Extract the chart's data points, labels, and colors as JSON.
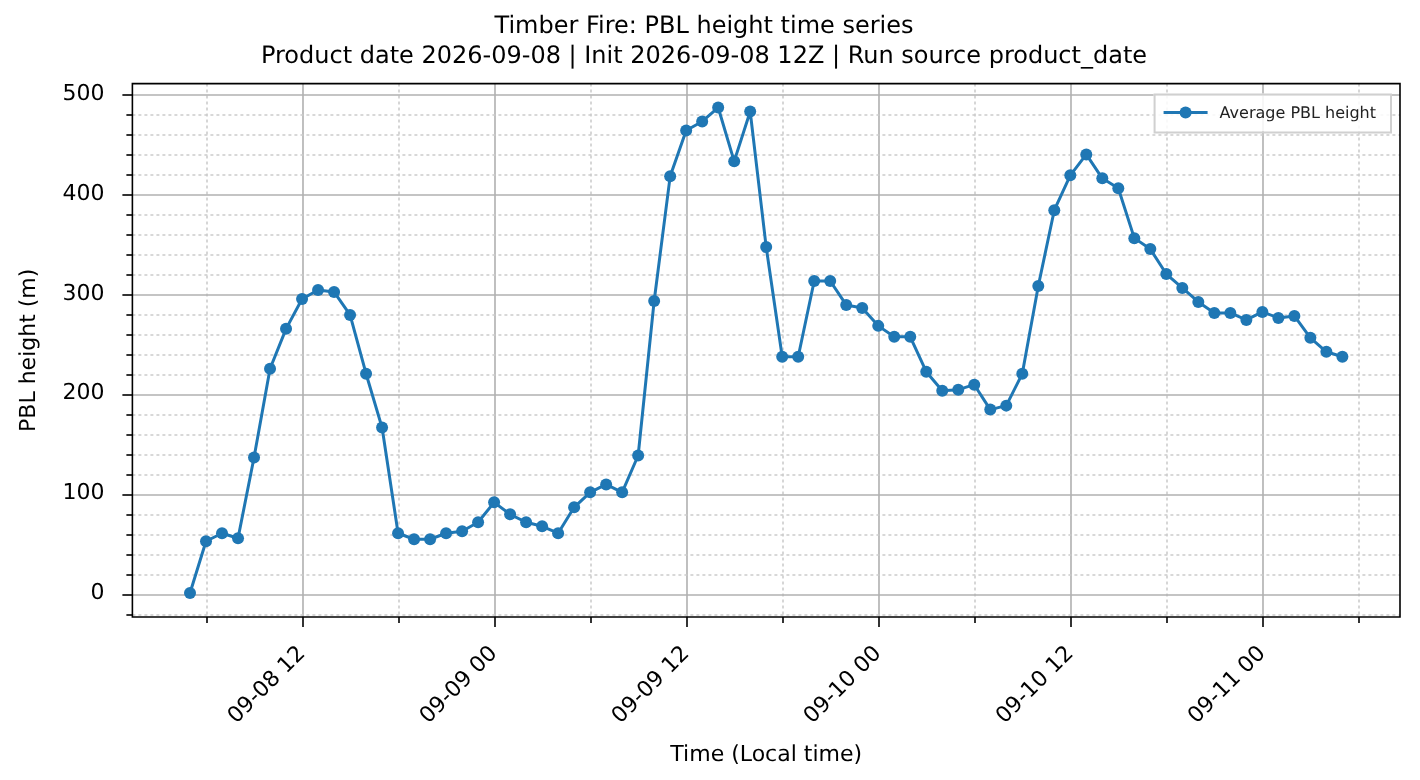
{
  "chart_data": {
    "type": "line",
    "title": "Timber Fire: PBL height time series",
    "subtitle": "Product date 2026-09-08 | Init 2026-09-08 12Z | Run source product_date",
    "xlabel": "Time (Local time)",
    "ylabel": "PBL height (m)",
    "x": [
      "2026-09-08T05:00",
      "2026-09-08T06:00",
      "2026-09-08T07:00",
      "2026-09-08T08:00",
      "2026-09-08T09:00",
      "2026-09-08T10:00",
      "2026-09-08T11:00",
      "2026-09-08T12:00",
      "2026-09-08T13:00",
      "2026-09-08T14:00",
      "2026-09-08T15:00",
      "2026-09-08T16:00",
      "2026-09-08T17:00",
      "2026-09-08T18:00",
      "2026-09-08T19:00",
      "2026-09-08T20:00",
      "2026-09-08T21:00",
      "2026-09-08T22:00",
      "2026-09-08T23:00",
      "2026-09-09T00:00",
      "2026-09-09T01:00",
      "2026-09-09T02:00",
      "2026-09-09T03:00",
      "2026-09-09T04:00",
      "2026-09-09T05:00",
      "2026-09-09T06:00",
      "2026-09-09T07:00",
      "2026-09-09T08:00",
      "2026-09-09T09:00",
      "2026-09-09T10:00",
      "2026-09-09T11:00",
      "2026-09-09T12:00",
      "2026-09-09T13:00",
      "2026-09-09T14:00",
      "2026-09-09T15:00",
      "2026-09-09T16:00",
      "2026-09-09T17:00",
      "2026-09-09T18:00",
      "2026-09-09T19:00",
      "2026-09-09T20:00",
      "2026-09-09T21:00",
      "2026-09-09T22:00",
      "2026-09-09T23:00",
      "2026-09-10T00:00",
      "2026-09-10T01:00",
      "2026-09-10T02:00",
      "2026-09-10T03:00",
      "2026-09-10T04:00",
      "2026-09-10T05:00",
      "2026-09-10T06:00",
      "2026-09-10T07:00",
      "2026-09-10T08:00",
      "2026-09-10T09:00",
      "2026-09-10T10:00",
      "2026-09-10T11:00",
      "2026-09-10T12:00",
      "2026-09-10T13:00",
      "2026-09-10T14:00",
      "2026-09-10T15:00",
      "2026-09-10T16:00",
      "2026-09-10T17:00",
      "2026-09-10T18:00",
      "2026-09-10T19:00",
      "2026-09-10T20:00",
      "2026-09-10T21:00",
      "2026-09-10T22:00",
      "2026-09-10T23:00",
      "2026-09-11T00:00",
      "2026-09-11T01:00",
      "2026-09-11T02:00",
      "2026-09-11T03:00",
      "2026-09-11T04:00",
      "2026-09-11T05:00"
    ],
    "series": [
      {
        "name": "Average PBL height",
        "color": "#1f77b4",
        "values": [
          0,
          52,
          60,
          55,
          136,
          225,
          265,
          295,
          304,
          302,
          279,
          220,
          166,
          60,
          54,
          54,
          60,
          62,
          71,
          91,
          79,
          71,
          67,
          60,
          86,
          101,
          109,
          101,
          138,
          293,
          418,
          464,
          473,
          487,
          433,
          483,
          347,
          237,
          237,
          313,
          313,
          289,
          286,
          268,
          257,
          257,
          222,
          203,
          204,
          209,
          184,
          188,
          220,
          308,
          384,
          419,
          440,
          416,
          406,
          356,
          345,
          320,
          306,
          292,
          281,
          281,
          274,
          282,
          276,
          278,
          256,
          242,
          237
        ]
      }
    ],
    "xlim": [
      "2026-09-08T01:24",
      "2026-09-11T08:36"
    ],
    "xticks": [
      {
        "value": "2026-09-08T06:00",
        "label": null
      },
      {
        "value": "2026-09-08T12:00",
        "label": "09-08 12"
      },
      {
        "value": "2026-09-08T18:00",
        "label": null
      },
      {
        "value": "2026-09-09T00:00",
        "label": "09-09 00"
      },
      {
        "value": "2026-09-09T06:00",
        "label": null
      },
      {
        "value": "2026-09-09T12:00",
        "label": "09-09 12"
      },
      {
        "value": "2026-09-09T18:00",
        "label": null
      },
      {
        "value": "2026-09-10T00:00",
        "label": "09-10 00"
      },
      {
        "value": "2026-09-10T06:00",
        "label": null
      },
      {
        "value": "2026-09-10T12:00",
        "label": "09-10 12"
      },
      {
        "value": "2026-09-10T18:00",
        "label": null
      },
      {
        "value": "2026-09-11T00:00",
        "label": "09-11 00"
      },
      {
        "value": "2026-09-11T06:00",
        "label": null
      }
    ],
    "ylim": [
      -24,
      511
    ],
    "yticks": [
      {
        "value": -20,
        "label": null
      },
      0,
      {
        "value": 20,
        "label": null
      },
      {
        "value": 40,
        "label": null
      },
      {
        "value": 60,
        "label": null
      },
      {
        "value": 80,
        "label": null
      },
      100,
      {
        "value": 120,
        "label": null
      },
      {
        "value": 140,
        "label": null
      },
      {
        "value": 160,
        "label": null
      },
      {
        "value": 180,
        "label": null
      },
      200,
      {
        "value": 220,
        "label": null
      },
      {
        "value": 240,
        "label": null
      },
      {
        "value": 260,
        "label": null
      },
      {
        "value": 280,
        "label": null
      },
      300,
      {
        "value": 320,
        "label": null
      },
      {
        "value": 340,
        "label": null
      },
      {
        "value": 360,
        "label": null
      },
      {
        "value": 380,
        "label": null
      },
      400,
      {
        "value": 420,
        "label": null
      },
      {
        "value": 440,
        "label": null
      },
      {
        "value": 460,
        "label": null
      },
      {
        "value": 480,
        "label": null
      },
      500
    ],
    "grid": true,
    "legend": "top right",
    "marker": "circle",
    "line_style": "solid"
  }
}
